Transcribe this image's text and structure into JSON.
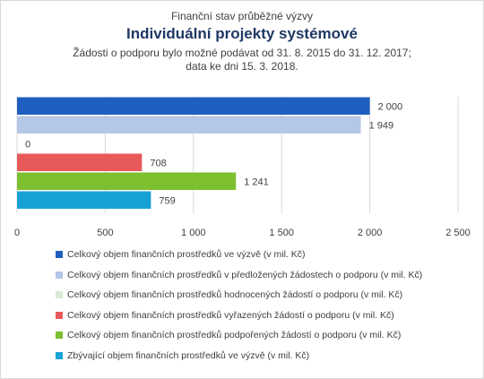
{
  "titles": {
    "supertitle": "Finanční stav průběžné výzvy",
    "title": "Individuální projekty systémové",
    "subtitle_line1": "Žádosti o podporu bylo možné podávat od 31. 8. 2015 do 31. 12. 2017;",
    "subtitle_line2": "data ke dni 15. 3. 2018."
  },
  "chart_data": {
    "type": "bar",
    "orientation": "horizontal",
    "xlim": [
      0,
      2500
    ],
    "xticks": [
      0,
      500,
      1000,
      1500,
      2000,
      2500
    ],
    "xtick_labels": [
      "0",
      "500",
      "1 000",
      "1 500",
      "2 000",
      "2 500"
    ],
    "grid": "vertical",
    "legend_position": "bottom",
    "series": [
      {
        "name": "Celkový objem finančních prostředků ve výzvě (v mil. Kč)",
        "value": 2000,
        "label": "2 000",
        "color": "#1f5fbf"
      },
      {
        "name": "Celkový objem finančních prostředků v předložených žádostech o podporu (v mil. Kč)",
        "value": 1949,
        "label": "1 949",
        "color": "#b4c7e7"
      },
      {
        "name": "Celkový objem finančních prostředků hodnocených žádostí o podporu (v mil. Kč)",
        "value": 0,
        "label": "0",
        "color": "#d9ead3"
      },
      {
        "name": "Celkový objem finančních prostředků vyřazených žádostí o podporu (v mil. Kč)",
        "value": 708,
        "label": "708",
        "color": "#e8595a"
      },
      {
        "name": "Celkový objem finančních prostředků podpořených žádostí o podporu (v mil. Kč)",
        "value": 1241,
        "label": "1 241",
        "color": "#7cbf2f"
      },
      {
        "name": "Zbývající objem finančních prostředků ve výzvě (v mil. Kč)",
        "value": 759,
        "label": "759",
        "color": "#17a2d6"
      }
    ]
  }
}
